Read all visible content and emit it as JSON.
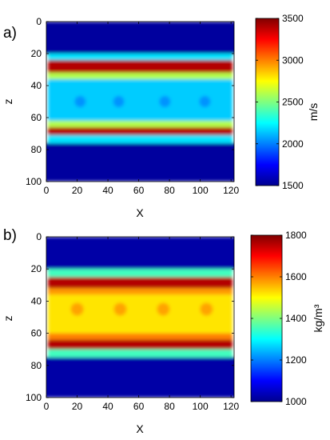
{
  "chart_data": [
    {
      "type": "heatmap",
      "panel_label": "a)",
      "xlabel": "X",
      "ylabel": "z",
      "x_ticks": [
        0,
        20,
        40,
        60,
        80,
        100,
        120
      ],
      "y_ticks": [
        0,
        20,
        40,
        60,
        80,
        100
      ],
      "xlim": [
        0,
        122
      ],
      "ylim": [
        100,
        0
      ],
      "colorbar": {
        "label": "m/s",
        "min": 1500,
        "max": 3500,
        "ticks": [
          1500,
          2000,
          2500,
          3000,
          3500
        ]
      },
      "layers": [
        {
          "z_range": [
            0,
            20
          ],
          "value": 1560
        },
        {
          "z_range": [
            20,
            24
          ],
          "value": 2200
        },
        {
          "z_range": [
            24,
            32
          ],
          "value": 3400
        },
        {
          "z_range": [
            32,
            36
          ],
          "value": 2600
        },
        {
          "z_range": [
            36,
            62
          ],
          "value": 2150
        },
        {
          "z_range": [
            62,
            66
          ],
          "value": 2600
        },
        {
          "z_range": [
            66,
            71
          ],
          "value": 3400
        },
        {
          "z_range": [
            71,
            76
          ],
          "value": 2200
        },
        {
          "z_range": [
            76,
            100
          ],
          "value": 1560
        }
      ],
      "inclusions": {
        "z_center": 50,
        "x_centers": [
          22,
          47,
          77,
          103
        ],
        "value": 2000
      }
    },
    {
      "type": "heatmap",
      "panel_label": "b)",
      "xlabel": "X",
      "ylabel": "z",
      "x_ticks": [
        0,
        20,
        40,
        60,
        80,
        100,
        120
      ],
      "y_ticks": [
        0,
        20,
        40,
        60,
        80,
        100
      ],
      "xlim": [
        0,
        122
      ],
      "ylim": [
        100,
        0
      ],
      "colorbar": {
        "label": "kg/m³",
        "min": 1000,
        "max": 1800,
        "ticks": [
          1000,
          1200,
          1400,
          1600,
          1800
        ]
      },
      "layers": [
        {
          "z_range": [
            0,
            20
          ],
          "value": 1030
        },
        {
          "z_range": [
            20,
            25
          ],
          "value": 1350
        },
        {
          "z_range": [
            25,
            32
          ],
          "value": 1760
        },
        {
          "z_range": [
            32,
            36
          ],
          "value": 1580
        },
        {
          "z_range": [
            36,
            60
          ],
          "value": 1520
        },
        {
          "z_range": [
            60,
            64
          ],
          "value": 1600
        },
        {
          "z_range": [
            64,
            70
          ],
          "value": 1760
        },
        {
          "z_range": [
            70,
            75
          ],
          "value": 1350
        },
        {
          "z_range": [
            75,
            100
          ],
          "value": 1030
        }
      ],
      "inclusions": {
        "z_center": 45,
        "x_centers": [
          20,
          48,
          76,
          104
        ],
        "value": 1590
      }
    }
  ]
}
